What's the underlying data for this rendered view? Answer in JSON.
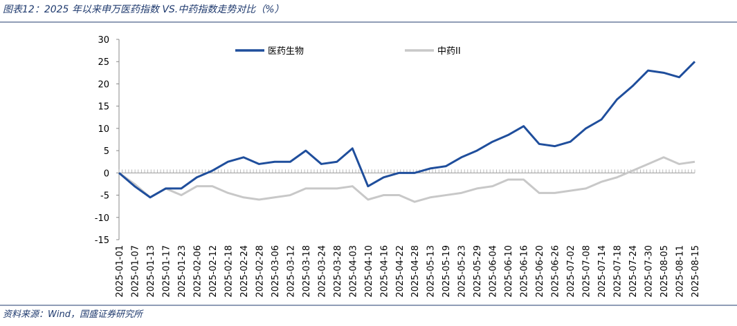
{
  "chart_data": {
    "type": "line",
    "title": "图表12：2025 年以来申万医药指数 VS.中药指数走势对比（%）",
    "source": "资料来源：Wind，国盛证券研究所",
    "categories": [
      "2025-01-01",
      "2025-01-07",
      "2025-01-13",
      "2025-01-17",
      "2025-01-23",
      "2025-02-06",
      "2025-02-12",
      "2025-02-18",
      "2025-02-24",
      "2025-02-28",
      "2025-03-06",
      "2025-03-12",
      "2025-03-18",
      "2025-03-24",
      "2025-03-28",
      "2025-04-03",
      "2025-04-10",
      "2025-04-16",
      "2025-04-22",
      "2025-04-28",
      "2025-05-13",
      "2025-05-19",
      "2025-05-23",
      "2025-05-29",
      "2025-06-04",
      "2025-06-10",
      "2025-06-16",
      "2025-06-20",
      "2025-06-26",
      "2025-07-02",
      "2025-07-08",
      "2025-07-14",
      "2025-07-18",
      "2025-07-24",
      "2025-07-30",
      "2025-08-05",
      "2025-08-11",
      "2025-08-15"
    ],
    "series": [
      {
        "name": "医药生物",
        "color": "#1f4e9c",
        "values": [
          0,
          -3,
          -5.5,
          -3.5,
          -3.5,
          -1,
          0.5,
          2.5,
          3.5,
          2,
          2.5,
          2.5,
          5,
          2,
          2.5,
          5.5,
          -3,
          -1,
          0,
          0,
          1,
          1.5,
          3.5,
          5,
          7,
          8.5,
          10.5,
          6.5,
          6,
          7,
          10,
          12,
          16.5,
          19.5,
          23,
          22.5,
          21.5,
          25
        ]
      },
      {
        "name": "中药II",
        "color": "#c8c8c8",
        "values": [
          0,
          -2.5,
          -5.5,
          -3.5,
          -5,
          -3,
          -3,
          -4.5,
          -5.5,
          -6,
          -5.5,
          -5,
          -3.5,
          -3.5,
          -3.5,
          -3,
          -6,
          -5,
          -5,
          -6.5,
          -5.5,
          -5,
          -4.5,
          -3.5,
          -3,
          -1.5,
          -1.5,
          -4.5,
          -4.5,
          -4,
          -3.5,
          -2,
          -1,
          0.5,
          2,
          3.5,
          2,
          2.5
        ]
      }
    ],
    "ylim": [
      -15,
      30
    ],
    "yticks": [
      -15,
      -10,
      -5,
      0,
      5,
      10,
      15,
      20,
      25,
      30
    ]
  }
}
